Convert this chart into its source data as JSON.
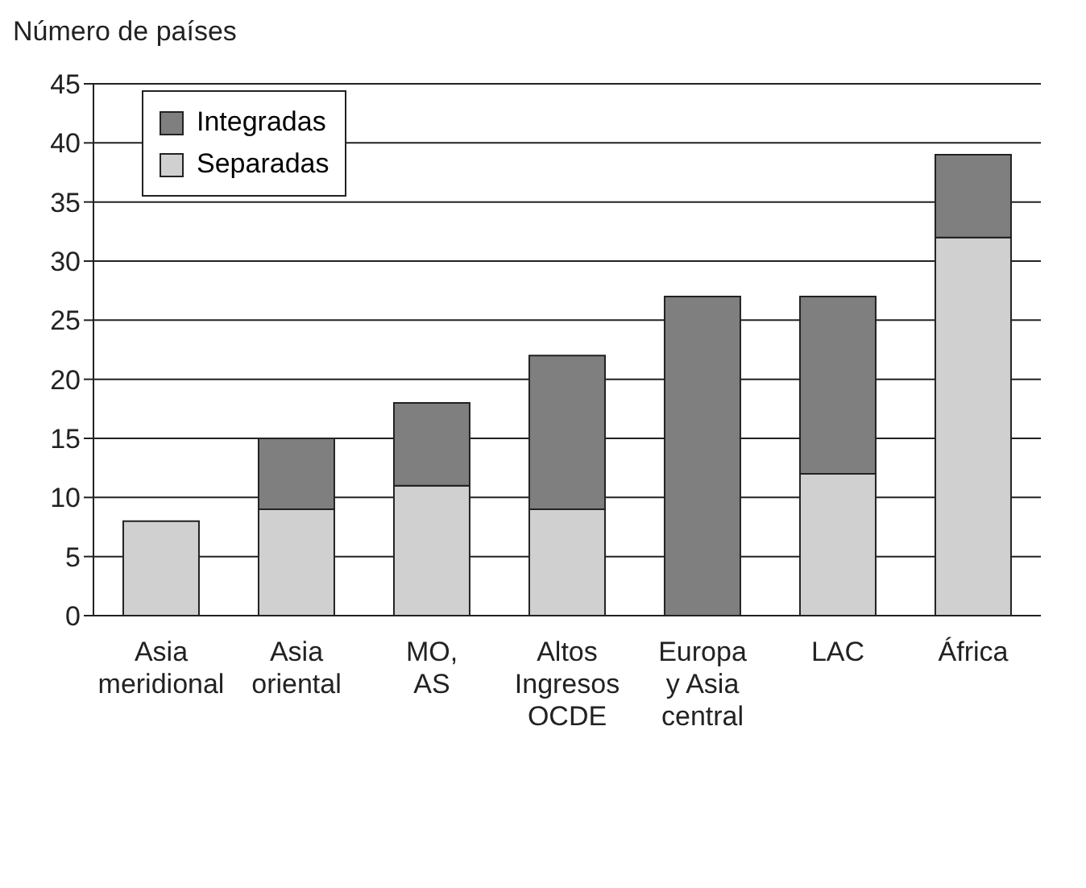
{
  "chart_data": {
    "type": "bar",
    "ylabel": "Número de países",
    "categories": [
      "Asia\nmeridional",
      "Asia\noriental",
      "MO,\nAS",
      "Altos\nIngresos\nOCDE",
      "Europa\ny Asia\ncentral",
      "LAC",
      "África"
    ],
    "series": [
      {
        "name": "Separadas",
        "color": "#d0d0d0",
        "values": [
          8,
          9,
          11,
          9,
          null,
          12,
          32
        ]
      },
      {
        "name": "Integradas",
        "color": "#7f7f7f",
        "values": [
          null,
          6,
          7,
          13,
          27,
          15,
          7
        ]
      }
    ],
    "stacked": true,
    "ylim": [
      0,
      45
    ],
    "yticks": [
      0,
      5,
      10,
      15,
      20,
      25,
      30,
      35,
      40,
      45
    ],
    "grid": "y",
    "legend": "top left"
  }
}
